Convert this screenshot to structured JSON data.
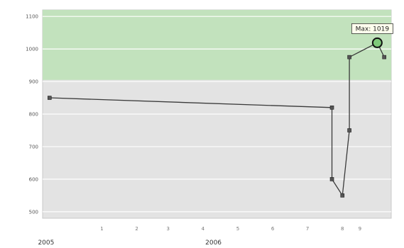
{
  "chart_data": {
    "type": "line",
    "title": "",
    "xlabel": "",
    "ylabel": "",
    "ylim": [
      480,
      1120
    ],
    "xlim": [
      0.0,
      10.0
    ],
    "yticks": [
      500,
      600,
      700,
      800,
      900,
      1000,
      1100
    ],
    "ytick_labels": [
      "500",
      "600",
      "700",
      "800",
      "900",
      "1000",
      "1100"
    ],
    "xticks": [
      1.7,
      2.7,
      3.6,
      4.6,
      5.6,
      6.6,
      7.6,
      8.6,
      9.1
    ],
    "xtick_labels": [
      "1",
      "2",
      "3",
      "4",
      "5",
      "6",
      "7",
      "8",
      "9"
    ],
    "year_labels": [
      {
        "x": 0.1,
        "label": "2005"
      },
      {
        "x": 4.9,
        "label": "2006"
      }
    ],
    "green_band": [
      905,
      1120
    ],
    "grid": true,
    "background": "#e3e3e3",
    "band_color": "#c0e2bb",
    "line_color": "#3a3a3a",
    "series": [
      {
        "x": [
          0.2,
          8.3,
          8.3,
          8.6,
          8.8,
          8.8,
          9.6,
          9.8
        ],
        "y": [
          850,
          820,
          600,
          550,
          750,
          975,
          1019,
          975
        ]
      }
    ],
    "callout": {
      "x": 9.6,
      "y": 1019,
      "label": "Max: 1019"
    }
  }
}
